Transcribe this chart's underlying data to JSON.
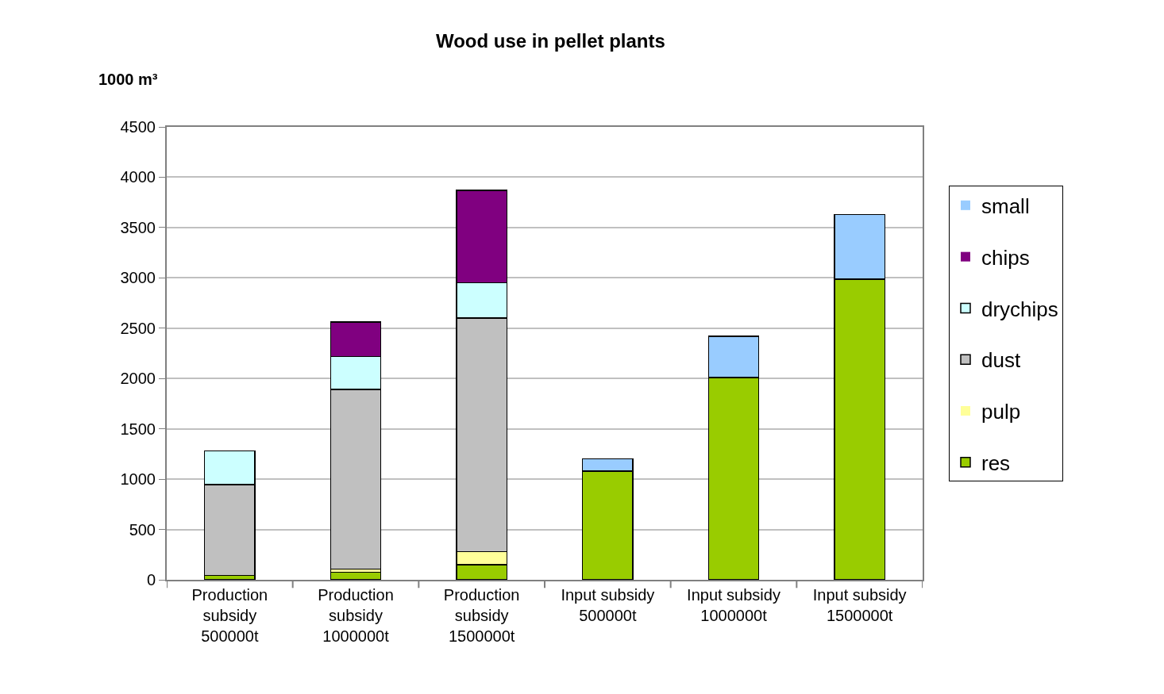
{
  "chart_data": {
    "type": "bar",
    "title": "Wood use in pellet plants",
    "ylabel": "1000 m³",
    "categories": [
      "Production subsidy 500000t",
      "Production subsidy 1000000t",
      "Production subsidy 1500000t",
      "Input subsidy 500000t",
      "Input subsidy 1000000t",
      "Input subsidy 1500000t"
    ],
    "stacked": true,
    "ylim": [
      0,
      4500
    ],
    "yticks": [
      0,
      500,
      1000,
      1500,
      2000,
      2500,
      3000,
      3500,
      4000,
      4500
    ],
    "grid": "y",
    "legend": "right",
    "series": [
      {
        "name": "res",
        "color": "#99cc00",
        "values": [
          45,
          75,
          150,
          1080,
          2010,
          2985
        ]
      },
      {
        "name": "pulp",
        "color": "#ffff99",
        "values": [
          null,
          30,
          130,
          null,
          null,
          null
        ]
      },
      {
        "name": "dust",
        "color": "#c0c0c0",
        "values": [
          900,
          1785,
          2320,
          null,
          null,
          null
        ]
      },
      {
        "name": "drychips",
        "color": "#ccffff",
        "values": [
          335,
          330,
          350,
          null,
          null,
          null
        ]
      },
      {
        "name": "chips",
        "color": "#800080",
        "values": [
          null,
          340,
          920,
          null,
          null,
          null
        ]
      },
      {
        "name": "small",
        "color": "#99ccff",
        "values": [
          null,
          null,
          null,
          120,
          410,
          645
        ]
      }
    ]
  }
}
